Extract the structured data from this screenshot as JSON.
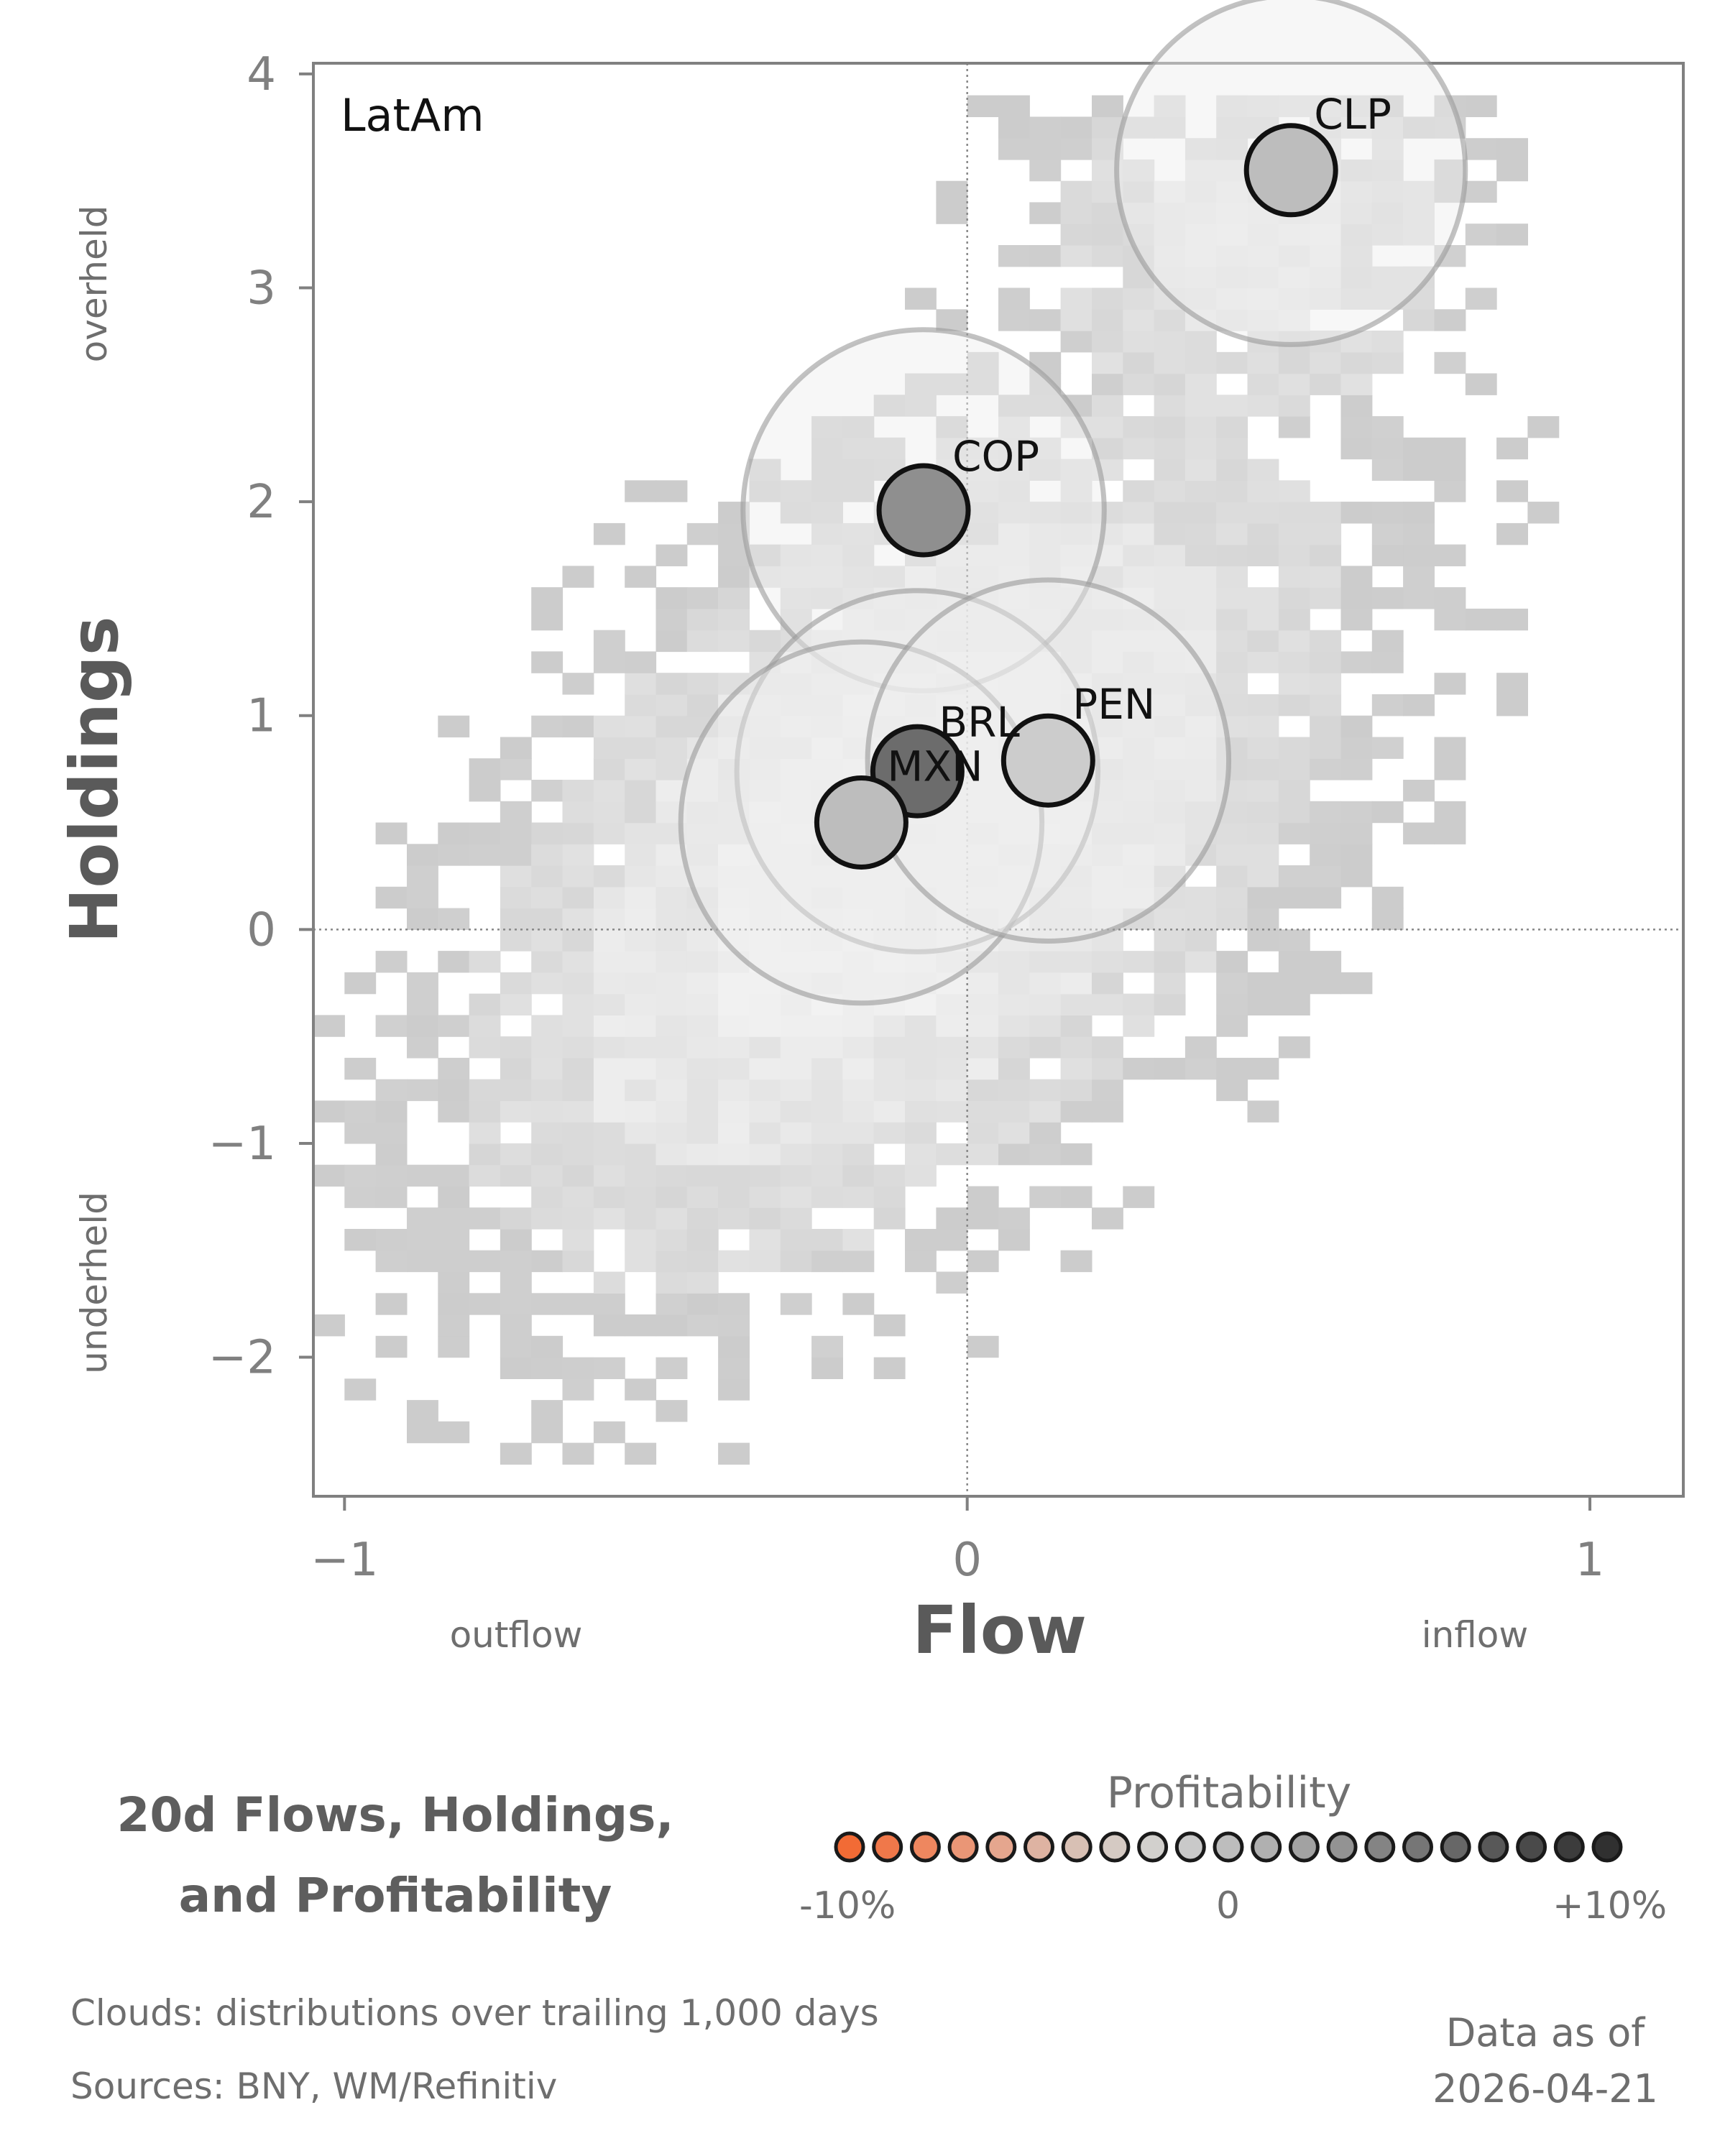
{
  "chart_data": {
    "type": "scatter",
    "panel_label": "LatAm",
    "xlabel": "Flow",
    "ylabel": "Holdings",
    "xlim": [
      -1.05,
      1.15
    ],
    "ylim": [
      -2.65,
      4.05
    ],
    "x_ticks": [
      -1,
      0,
      1
    ],
    "x_tick_labels": [
      "−1",
      "0",
      "1"
    ],
    "y_ticks": [
      4,
      3,
      2,
      1,
      0,
      -1,
      -2
    ],
    "y_tick_labels": [
      "4",
      "3",
      "2",
      "1",
      "0",
      "−1",
      "−2"
    ],
    "x_side_labels": {
      "left": "outflow",
      "right": "inflow"
    },
    "y_side_labels": {
      "top": "overheld",
      "bottom": "underheld"
    },
    "reference_lines": {
      "x": 0,
      "y": 0
    },
    "background": "2D histogram clouds of trailing distributions (grey)",
    "points": [
      {
        "label": "CLP",
        "x": 0.52,
        "y": 3.55,
        "profitability": 0.02,
        "color": "#bdbdbd",
        "halo": 0.28
      },
      {
        "label": "COP",
        "x": -0.07,
        "y": 1.96,
        "profitability": 0.06,
        "color": "#8f8f8f",
        "halo": 0.29
      },
      {
        "label": "BRL",
        "x": -0.08,
        "y": 0.74,
        "profitability": 0.08,
        "color": "#6c6c6c",
        "halo": 0.29
      },
      {
        "label": "MXN",
        "x": -0.17,
        "y": 0.5,
        "profitability": 0.02,
        "color": "#bdbdbd",
        "halo": 0.29
      },
      {
        "label": "PEN",
        "x": 0.13,
        "y": 0.79,
        "profitability": 0.01,
        "color": "#cccccc",
        "halo": 0.29
      }
    ]
  },
  "title": {
    "line1": "20d Flows, Holdings,",
    "line2": "and Profitability"
  },
  "legend": {
    "title": "Profitability",
    "min_label": "-10%",
    "mid_label": "0",
    "max_label": "+10%",
    "colors": [
      "#f26b35",
      "#f0784a",
      "#ee875f",
      "#ea9676",
      "#e5a68e",
      "#deb3a2",
      "#d8c0b4",
      "#d5cac3",
      "#d2d0cd",
      "#c9c9c9",
      "#bdbdbd",
      "#b0b0b0",
      "#a2a2a2",
      "#939393",
      "#848484",
      "#767676",
      "#676767",
      "#585858",
      "#4a4a4a",
      "#3c3c3c",
      "#303030"
    ]
  },
  "footer": {
    "clouds_note": "Clouds:  distributions over trailing 1,000 days",
    "sources": "Sources:  BNY, WM/Refinitiv",
    "asof_line1": "Data as of",
    "asof_line2": "2026-04-21"
  }
}
